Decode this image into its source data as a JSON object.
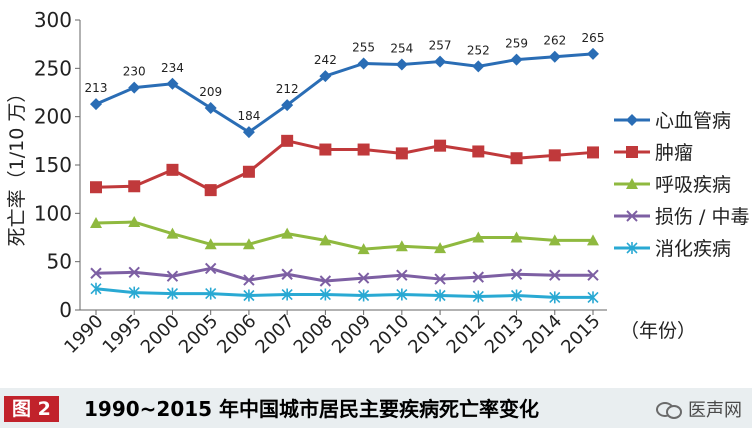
{
  "chart_data": {
    "type": "line",
    "categories": [
      "1990",
      "1995",
      "2000",
      "2005",
      "2006",
      "2007",
      "2008",
      "2009",
      "2010",
      "2011",
      "2012",
      "2013",
      "2014",
      "2015"
    ],
    "ylabel": "死亡率（1/10 万）",
    "xunit": "（年份）",
    "ylim": [
      0,
      300
    ],
    "yticks": [
      0,
      50,
      100,
      150,
      200,
      250,
      300
    ],
    "grid": false,
    "legend_position": "right",
    "series": [
      {
        "name": "心血管病",
        "color": "#2a6db5",
        "marker": "diamond",
        "values": [
          213,
          230,
          234,
          209,
          184,
          212,
          242,
          255,
          254,
          257,
          252,
          259,
          262,
          265
        ],
        "labels": [
          "213",
          "230",
          "234",
          "209",
          "184",
          "212",
          "242",
          "255",
          "254",
          "257",
          "252",
          "259",
          "262",
          "265"
        ]
      },
      {
        "name": "肿瘤",
        "color": "#c0393b",
        "marker": "square",
        "values": [
          127,
          128,
          145,
          124,
          143,
          175,
          166,
          166,
          162,
          170,
          164,
          157,
          160,
          163
        ]
      },
      {
        "name": "呼吸疾病",
        "color": "#8fb93f",
        "marker": "triangle",
        "values": [
          90,
          91,
          79,
          68,
          68,
          79,
          72,
          63,
          66,
          64,
          75,
          75,
          72,
          72
        ]
      },
      {
        "name": "损伤 / 中毒",
        "color": "#7d5fa3",
        "marker": "x",
        "values": [
          38,
          39,
          35,
          43,
          31,
          37,
          30,
          33,
          36,
          32,
          34,
          37,
          36,
          36
        ]
      },
      {
        "name": "消化疾病",
        "color": "#29a9d3",
        "marker": "star",
        "values": [
          22,
          18,
          17,
          17,
          15,
          16,
          16,
          15,
          16,
          15,
          14,
          15,
          13,
          13
        ]
      }
    ]
  },
  "caption": {
    "tag": "图 2",
    "title": "1990~2015 年中国城市居民主要疾病死亡率变化"
  },
  "watermark": {
    "text": "医声网"
  }
}
